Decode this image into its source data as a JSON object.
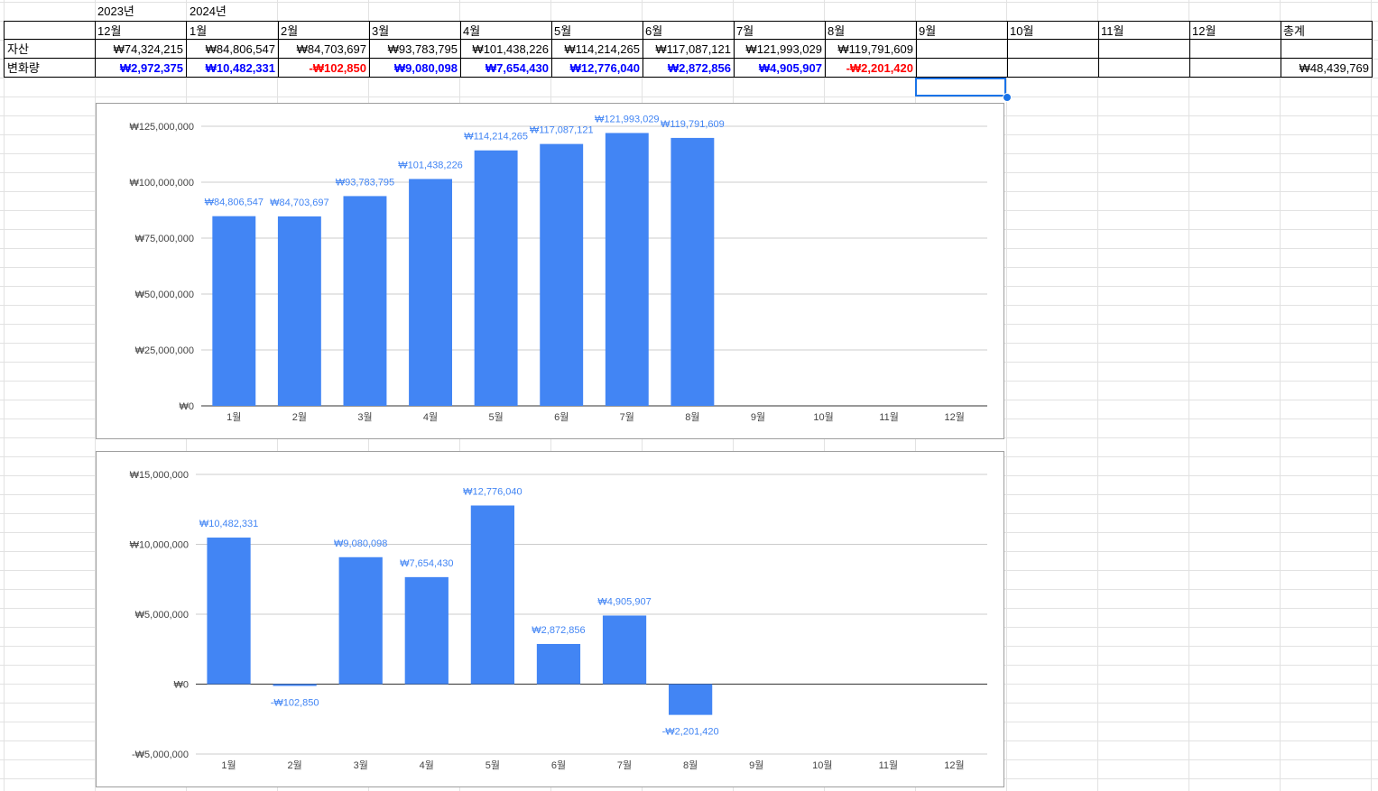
{
  "sheet": {
    "year_labels": [
      "2023년",
      "2024년"
    ],
    "header_row": [
      "12월",
      "1월",
      "2월",
      "3월",
      "4월",
      "5월",
      "6월",
      "7월",
      "8월",
      "9월",
      "10월",
      "11월",
      "12월",
      "총계"
    ],
    "row_labels": [
      "자산",
      "변화량"
    ],
    "assets": [
      "₩74,324,215",
      "₩84,806,547",
      "₩84,703,697",
      "₩93,783,795",
      "₩101,438,226",
      "₩114,214,265",
      "₩117,087,121",
      "₩121,993,029",
      "₩119,791,609",
      "",
      "",
      "",
      "",
      ""
    ],
    "changes": [
      "₩2,972,375",
      "₩10,482,331",
      "-₩102,850",
      "₩9,080,098",
      "₩7,654,430",
      "₩12,776,040",
      "₩2,872,856",
      "₩4,905,907",
      "-₩2,201,420",
      "",
      "",
      "",
      "",
      "₩48,439,769"
    ],
    "colors": {
      "positive": "#0000ff",
      "negative": "#ff0000",
      "selection": "#1a73e8"
    }
  },
  "chart_data": [
    {
      "type": "bar",
      "categories": [
        "1월",
        "2월",
        "3월",
        "4월",
        "5월",
        "6월",
        "7월",
        "8월",
        "9월",
        "10월",
        "11월",
        "12월"
      ],
      "values": [
        84806547,
        84703697,
        93783795,
        101438226,
        114214265,
        117087121,
        121993029,
        119791609,
        null,
        null,
        null,
        null
      ],
      "data_labels": [
        "₩84,806,547",
        "₩84,703,697",
        "₩93,783,795",
        "₩101,438,226",
        "₩114,214,265",
        "₩117,087,121",
        "₩121,993,029",
        "₩119,791,609",
        "",
        "",
        "",
        ""
      ],
      "y_ticks": [
        0,
        25000000,
        50000000,
        75000000,
        100000000,
        125000000
      ],
      "y_tick_labels": [
        "₩0",
        "₩25,000,000",
        "₩50,000,000",
        "₩75,000,000",
        "₩100,000,000",
        "₩125,000,000"
      ],
      "ylim": [
        0,
        125000000
      ],
      "grid": true,
      "bar_color": "#4285f4"
    },
    {
      "type": "bar",
      "categories": [
        "1월",
        "2월",
        "3월",
        "4월",
        "5월",
        "6월",
        "7월",
        "8월",
        "9월",
        "10월",
        "11월",
        "12월"
      ],
      "values": [
        10482331,
        -102850,
        9080098,
        7654430,
        12776040,
        2872856,
        4905907,
        -2201420,
        null,
        null,
        null,
        null
      ],
      "data_labels": [
        "₩10,482,331",
        "-₩102,850",
        "₩9,080,098",
        "₩7,654,430",
        "₩12,776,040",
        "₩2,872,856",
        "₩4,905,907",
        "-₩2,201,420",
        "",
        "",
        "",
        ""
      ],
      "y_ticks": [
        -5000000,
        0,
        5000000,
        10000000,
        15000000
      ],
      "y_tick_labels": [
        "-₩5,000,000",
        "₩0",
        "₩5,000,000",
        "₩10,000,000",
        "₩15,000,000"
      ],
      "ylim": [
        -5000000,
        15000000
      ],
      "grid": true,
      "bar_color": "#4285f4"
    }
  ]
}
